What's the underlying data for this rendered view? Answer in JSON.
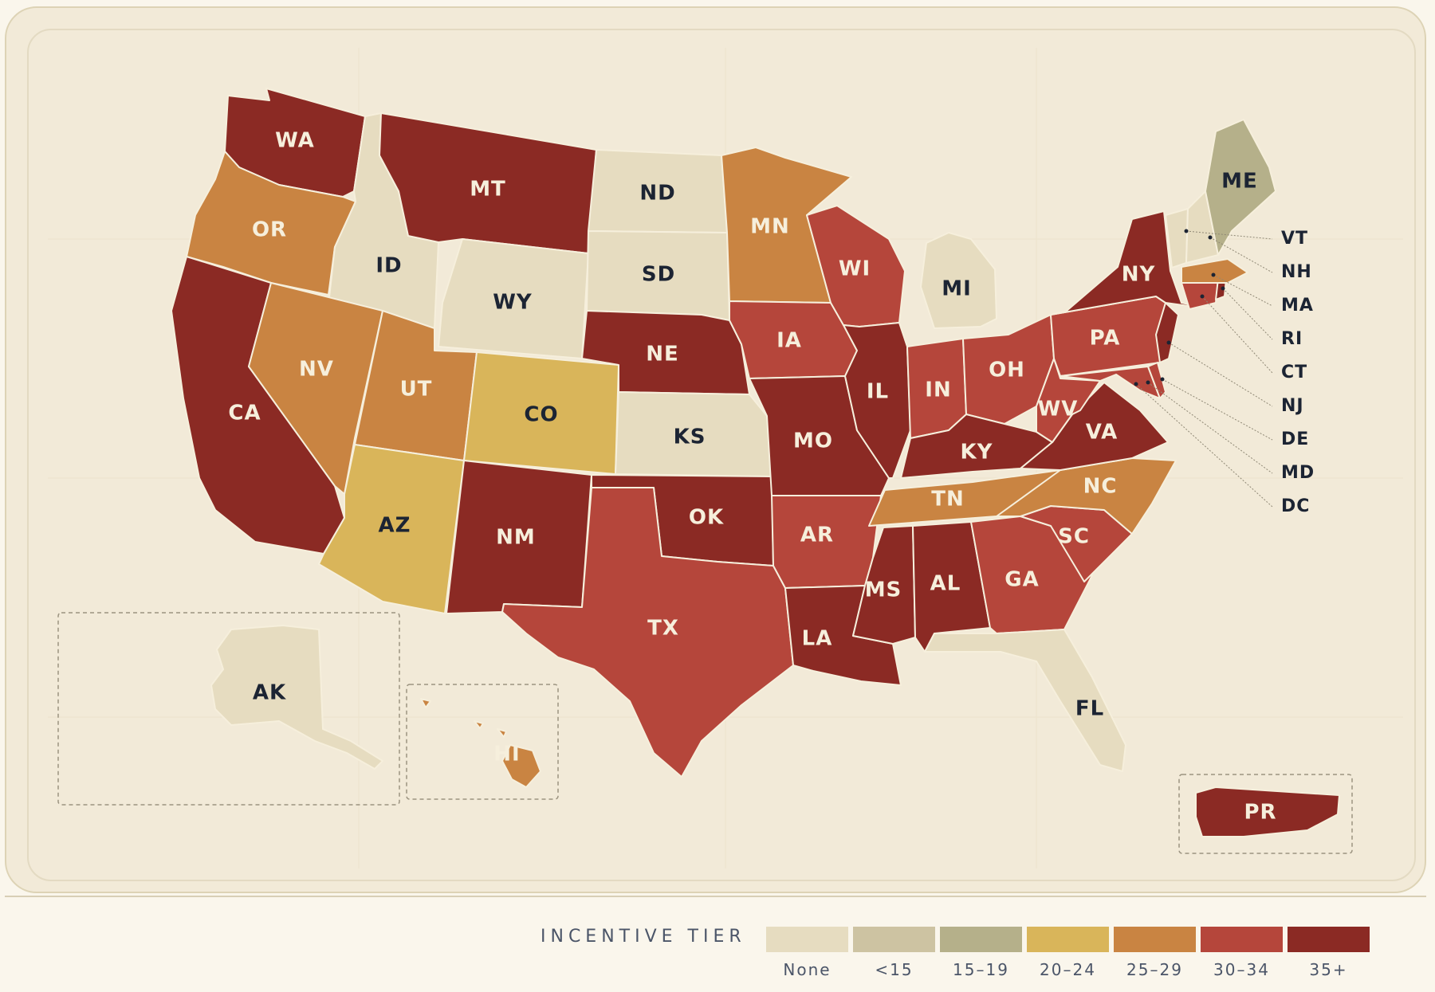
{
  "legend": {
    "title": "INCENTIVE TIER",
    "tiers": [
      {
        "label": "None",
        "color": "#e6dcc0"
      },
      {
        "label": "<15",
        "color": "#cdc3a2"
      },
      {
        "label": "15–19",
        "color": "#b5b08a"
      },
      {
        "label": "20–24",
        "color": "#d9b55a"
      },
      {
        "label": "25–29",
        "color": "#c98442"
      },
      {
        "label": "30–34",
        "color": "#b5463b"
      },
      {
        "label": "35+",
        "color": "#8b2a24"
      }
    ]
  },
  "states": [
    {
      "abbr": "WA",
      "tier": 6
    },
    {
      "abbr": "OR",
      "tier": 4
    },
    {
      "abbr": "CA",
      "tier": 6
    },
    {
      "abbr": "ID",
      "tier": 0
    },
    {
      "abbr": "NV",
      "tier": 4
    },
    {
      "abbr": "MT",
      "tier": 6
    },
    {
      "abbr": "WY",
      "tier": 0
    },
    {
      "abbr": "UT",
      "tier": 4
    },
    {
      "abbr": "AZ",
      "tier": 3
    },
    {
      "abbr": "CO",
      "tier": 3
    },
    {
      "abbr": "NM",
      "tier": 6
    },
    {
      "abbr": "ND",
      "tier": 0
    },
    {
      "abbr": "SD",
      "tier": 0
    },
    {
      "abbr": "NE",
      "tier": 6
    },
    {
      "abbr": "KS",
      "tier": 0
    },
    {
      "abbr": "OK",
      "tier": 6
    },
    {
      "abbr": "TX",
      "tier": 5
    },
    {
      "abbr": "MN",
      "tier": 4
    },
    {
      "abbr": "IA",
      "tier": 5
    },
    {
      "abbr": "MO",
      "tier": 6
    },
    {
      "abbr": "AR",
      "tier": 5
    },
    {
      "abbr": "LA",
      "tier": 6
    },
    {
      "abbr": "WI",
      "tier": 5
    },
    {
      "abbr": "IL",
      "tier": 6
    },
    {
      "abbr": "MI",
      "tier": 0
    },
    {
      "abbr": "IN",
      "tier": 5
    },
    {
      "abbr": "OH",
      "tier": 5
    },
    {
      "abbr": "KY",
      "tier": 6
    },
    {
      "abbr": "TN",
      "tier": 4
    },
    {
      "abbr": "MS",
      "tier": 6
    },
    {
      "abbr": "AL",
      "tier": 6
    },
    {
      "abbr": "GA",
      "tier": 5
    },
    {
      "abbr": "FL",
      "tier": 0
    },
    {
      "abbr": "SC",
      "tier": 5
    },
    {
      "abbr": "NC",
      "tier": 4
    },
    {
      "abbr": "VA",
      "tier": 6
    },
    {
      "abbr": "WV",
      "tier": 5
    },
    {
      "abbr": "PA",
      "tier": 5
    },
    {
      "abbr": "NY",
      "tier": 6
    },
    {
      "abbr": "NJ",
      "tier": 6
    },
    {
      "abbr": "ME",
      "tier": 2
    },
    {
      "abbr": "VT",
      "tier": 0
    },
    {
      "abbr": "NH",
      "tier": 0
    },
    {
      "abbr": "MA",
      "tier": 4
    },
    {
      "abbr": "RI",
      "tier": 6
    },
    {
      "abbr": "CT",
      "tier": 5
    },
    {
      "abbr": "DE",
      "tier": 5
    },
    {
      "abbr": "MD",
      "tier": 5
    },
    {
      "abbr": "DC",
      "tier": 5
    },
    {
      "abbr": "AK",
      "tier": 0
    },
    {
      "abbr": "HI",
      "tier": 4
    },
    {
      "abbr": "PR",
      "tier": 6
    }
  ]
}
